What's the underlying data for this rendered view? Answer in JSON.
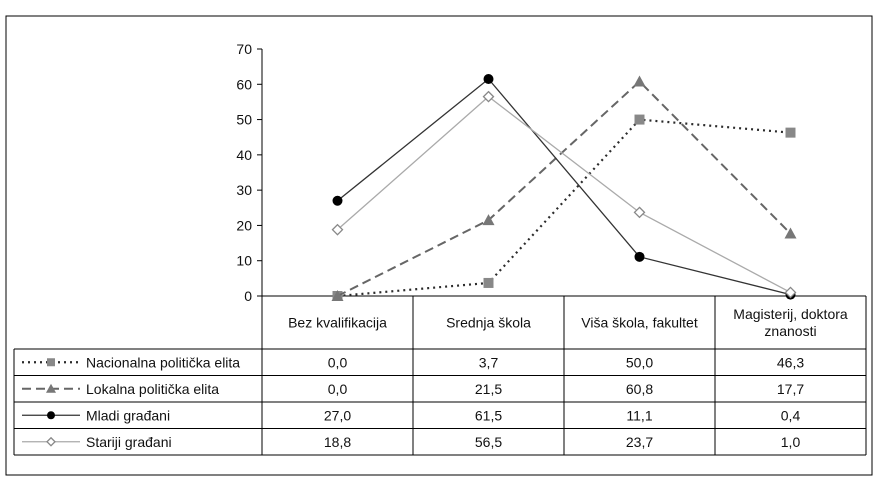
{
  "chart_data": {
    "type": "line",
    "categories": [
      "Bez kvalifikacija",
      "Srednja škola",
      "Viša škola, fakultet",
      "Magisterij, doktora znanosti"
    ],
    "category_label_lines": [
      [
        "Bez kvalifikacija"
      ],
      [
        "Srednja škola"
      ],
      [
        "Viša škola, fakultet"
      ],
      [
        "Magisterij, doktora",
        "znanosti"
      ]
    ],
    "y_ticks": [
      "70",
      "60",
      "50",
      "40",
      "30",
      "20",
      "10",
      "0"
    ],
    "ylim": [
      0,
      70
    ],
    "grid": false,
    "legend": "data-table-left",
    "series": [
      {
        "name": "Nacionalna politička elita",
        "values": [
          0.0,
          3.7,
          50.0,
          46.3
        ],
        "labels": [
          "0,0",
          "3,7",
          "50,0",
          "46,3"
        ],
        "marker": "square",
        "style": "dotted",
        "color": "#2b2b2b",
        "marker_color": "#888888"
      },
      {
        "name": "Lokalna politička elita",
        "values": [
          0.0,
          21.5,
          60.8,
          17.7
        ],
        "labels": [
          "0,0",
          "21,5",
          "60,8",
          "17,7"
        ],
        "marker": "triangle",
        "style": "dashed",
        "color": "#666666",
        "marker_color": "#777777"
      },
      {
        "name": "Mladi građani",
        "values": [
          27.0,
          61.5,
          11.1,
          0.4
        ],
        "labels": [
          "27,0",
          "61,5",
          "11,1",
          "0,4"
        ],
        "marker": "circle",
        "style": "solid",
        "color": "#333333",
        "marker_color": "#000000"
      },
      {
        "name": "Stariji građani",
        "values": [
          18.8,
          56.5,
          23.7,
          1.0
        ],
        "labels": [
          "18,8",
          "56,5",
          "23,7",
          "1,0"
        ],
        "marker": "diamond-open",
        "style": "solid-light",
        "color": "#aaaaaa",
        "marker_color": "#888888"
      }
    ]
  }
}
